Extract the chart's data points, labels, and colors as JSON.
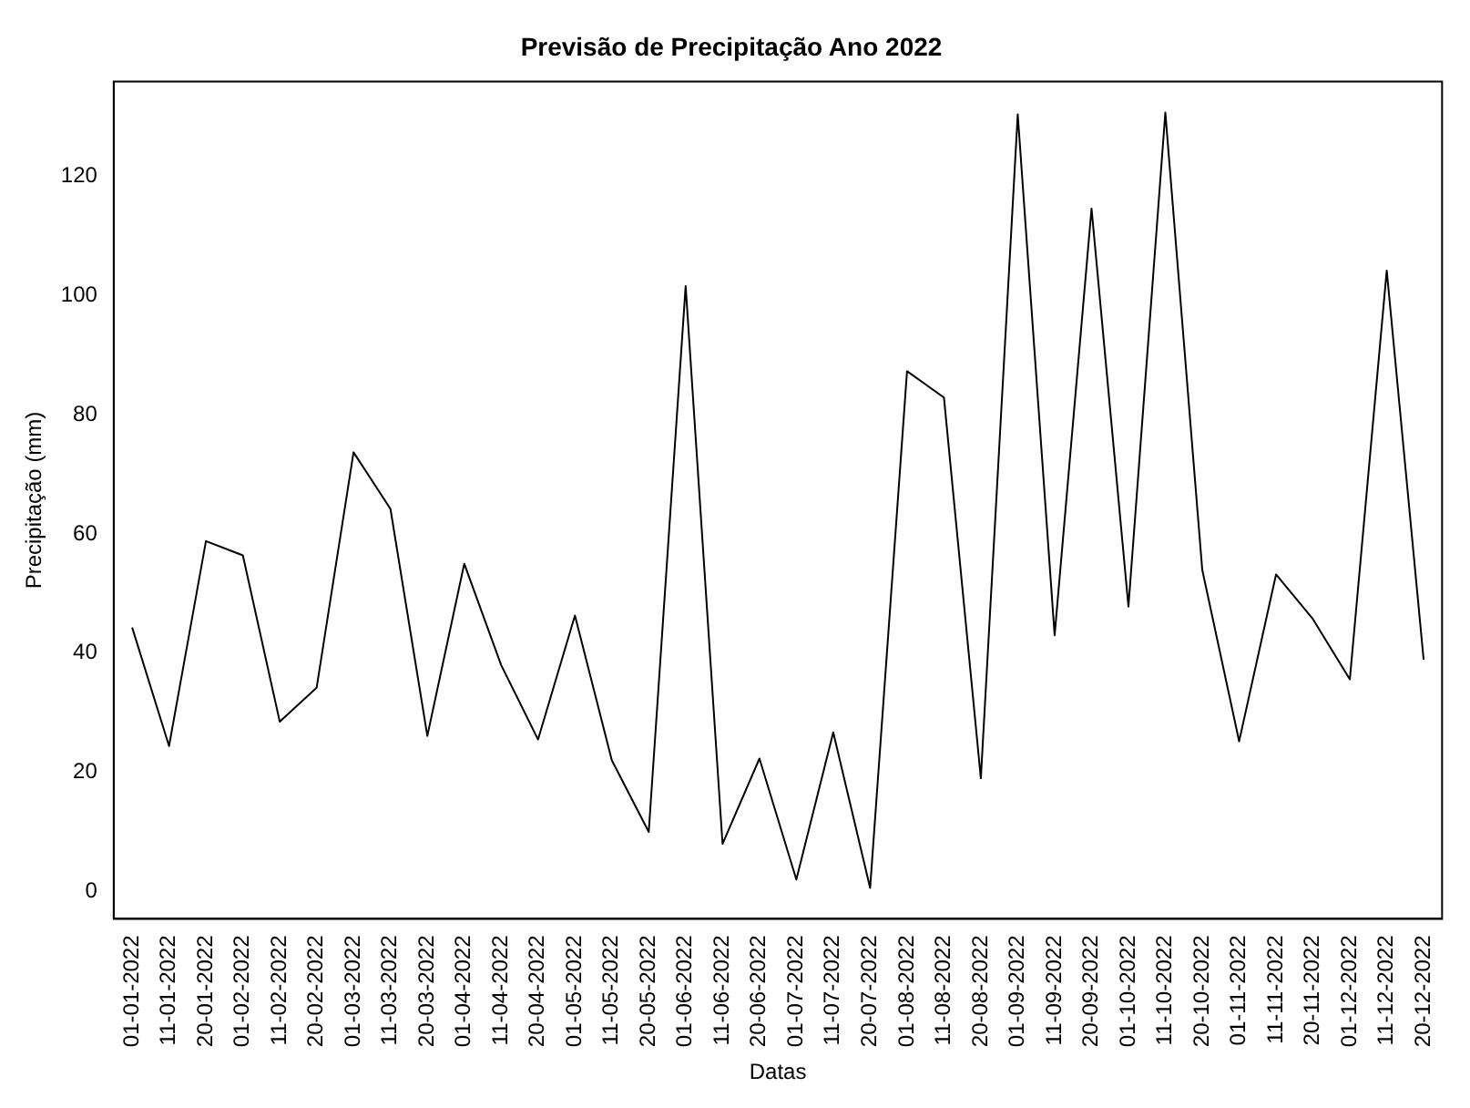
{
  "chart_data": {
    "type": "line",
    "title": "Previsão de Precipitação Ano 2022",
    "xlabel": "Datas",
    "ylabel": "Precipitação (mm)",
    "categories": [
      "01-01-2022",
      "11-01-2022",
      "20-01-2022",
      "01-02-2022",
      "11-02-2022",
      "20-02-2022",
      "01-03-2022",
      "11-03-2022",
      "20-03-2022",
      "01-04-2022",
      "11-04-2022",
      "20-04-2022",
      "01-05-2022",
      "11-05-2022",
      "20-05-2022",
      "01-06-2022",
      "11-06-2022",
      "20-06-2022",
      "01-07-2022",
      "11-07-2022",
      "20-07-2022",
      "01-08-2022",
      "11-08-2022",
      "20-08-2022",
      "01-09-2022",
      "11-09-2022",
      "20-09-2022",
      "01-10-2022",
      "11-10-2022",
      "20-10-2022",
      "01-11-2022",
      "11-11-2022",
      "20-11-2022",
      "01-12-2022",
      "11-12-2022",
      "20-12-2022"
    ],
    "series": [
      {
        "color": "#000000",
        "values": [
          44.3,
          24.4,
          58.8,
          56.4,
          28.5,
          34.2,
          73.7,
          64.2,
          26.1,
          55,
          38,
          25.5,
          46.3,
          22,
          10,
          101.6,
          8,
          22.3,
          2,
          26.7,
          0.6,
          87.3,
          82.9,
          19,
          130.4,
          43,
          114.6,
          47.8,
          130.7,
          54,
          25.2,
          53.2,
          45.7,
          35.6,
          104.2,
          38.9
        ]
      }
    ],
    "ylim": [
      -4.6,
      135.9
    ],
    "yticks": [
      0,
      20,
      40,
      60,
      80,
      100,
      120
    ],
    "grid": false,
    "legend": false,
    "line_style": "solid"
  }
}
